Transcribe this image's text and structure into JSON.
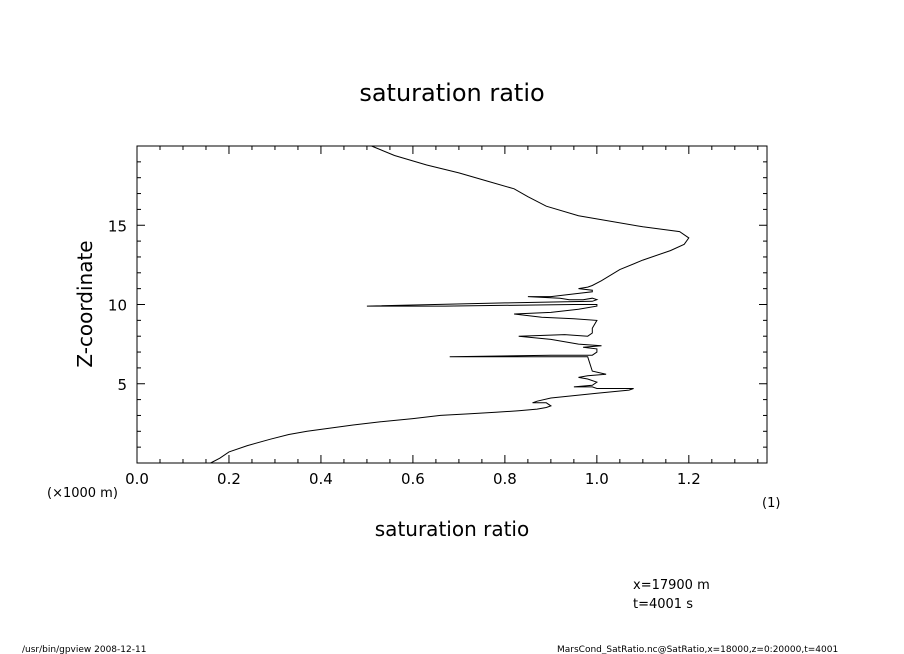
{
  "chart_data": {
    "type": "line",
    "title": "saturation ratio",
    "xlabel": "saturation ratio",
    "ylabel": "Z-coordinate",
    "xunit": "(1)",
    "yunit": "(×1000 m)",
    "xlim": [
      0.0,
      1.37
    ],
    "ylim": [
      0,
      20000
    ],
    "xticks": [
      0.0,
      0.2,
      0.4,
      0.6,
      0.8,
      1.0,
      1.2
    ],
    "xtick_labels": [
      "0.0",
      "0.2",
      "0.4",
      "0.6",
      "0.8",
      "1.0",
      "1.2"
    ],
    "yticks": [
      5000,
      10000,
      15000
    ],
    "ytick_labels": [
      "5",
      "10",
      "15"
    ],
    "series": [
      {
        "x": [
          0.16,
          0.18,
          0.2,
          0.24,
          0.29,
          0.33,
          0.37,
          0.42,
          0.47,
          0.53,
          0.6,
          0.66,
          0.72,
          0.78,
          0.83,
          0.87,
          0.89,
          0.9,
          0.89,
          0.86,
          0.87,
          0.9,
          1.0,
          1.07,
          1.08,
          1.0,
          0.99,
          0.95,
          0.99,
          1.0,
          0.98,
          0.96,
          0.98,
          1.02,
          0.99,
          0.98,
          0.68,
          0.9,
          0.99,
          1.0,
          1.0,
          0.97,
          1.01,
          0.96,
          0.9,
          0.83,
          0.93,
          0.98,
          0.99,
          0.99,
          1.0,
          0.95,
          0.88,
          0.82,
          0.9,
          0.96,
          1.0,
          1.0,
          0.95,
          0.67,
          0.5,
          0.8,
          0.99,
          1.0,
          0.99,
          0.97,
          0.94,
          0.92,
          0.85,
          0.9,
          0.96,
          0.99,
          0.99,
          0.96,
          0.98,
          0.99,
          1.01,
          1.05,
          1.1,
          1.16,
          1.19,
          1.2,
          1.18,
          1.1,
          0.96,
          0.89,
          0.85,
          0.82,
          0.76,
          0.7,
          0.63,
          0.56,
          0.51
        ],
        "y": [
          0,
          300,
          700,
          1100,
          1500,
          1800,
          2000,
          2200,
          2400,
          2600,
          2800,
          3000,
          3100,
          3200,
          3300,
          3400,
          3500,
          3600,
          3800,
          3800,
          3900,
          4100,
          4400,
          4600,
          4700,
          4700,
          4800,
          4800,
          4900,
          5100,
          5300,
          5400,
          5500,
          5600,
          5800,
          6700,
          6700,
          6800,
          6800,
          7000,
          7200,
          7300,
          7400,
          7500,
          7800,
          8000,
          8100,
          8000,
          8200,
          8500,
          9000,
          9100,
          9200,
          9400,
          9500,
          9700,
          9900,
          10000,
          10000,
          9900,
          9900,
          10100,
          10200,
          10300,
          10400,
          10300,
          10300,
          10400,
          10500,
          10500,
          10700,
          10800,
          10900,
          11000,
          11100,
          11200,
          11500,
          12200,
          12800,
          13400,
          13800,
          14200,
          14600,
          14900,
          15600,
          16200,
          16800,
          17300,
          17800,
          18300,
          18800,
          19400,
          20000
        ]
      }
    ],
    "grid": false,
    "legend": "none",
    "annotations": [
      "x=17900  m",
      "t=4001  s"
    ]
  },
  "footer": {
    "left": "/usr/bin/gpview   2008-12-11",
    "right": "MarsCond_SatRatio.nc@SatRatio,x=18000,z=0:20000,t=4001"
  }
}
